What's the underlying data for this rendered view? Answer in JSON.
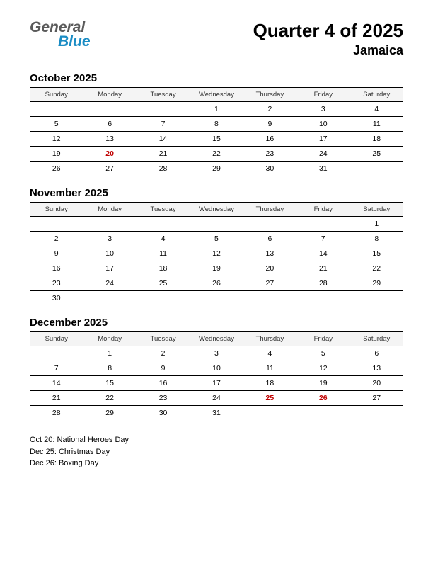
{
  "logo": {
    "line1": "General",
    "line2": "Blue",
    "color_top": "#5a5a5a",
    "color_bottom": "#1a8cc4"
  },
  "title": "Quarter 4 of 2025",
  "subtitle": "Jamaica",
  "weekday_labels": [
    "Sunday",
    "Monday",
    "Tuesday",
    "Wednesday",
    "Thursday",
    "Friday",
    "Saturday"
  ],
  "months": [
    {
      "name": "October 2025",
      "rows": [
        [
          "",
          "",
          "",
          "1",
          "2",
          "3",
          "4"
        ],
        [
          "5",
          "6",
          "7",
          "8",
          "9",
          "10",
          "11"
        ],
        [
          "12",
          "13",
          "14",
          "15",
          "16",
          "17",
          "18"
        ],
        [
          "19",
          "20",
          "21",
          "22",
          "23",
          "24",
          "25"
        ],
        [
          "26",
          "27",
          "28",
          "29",
          "30",
          "31",
          ""
        ]
      ],
      "holidays_cells": [
        [
          3,
          1
        ]
      ]
    },
    {
      "name": "November 2025",
      "rows": [
        [
          "",
          "",
          "",
          "",
          "",
          "",
          "1"
        ],
        [
          "2",
          "3",
          "4",
          "5",
          "6",
          "7",
          "8"
        ],
        [
          "9",
          "10",
          "11",
          "12",
          "13",
          "14",
          "15"
        ],
        [
          "16",
          "17",
          "18",
          "19",
          "20",
          "21",
          "22"
        ],
        [
          "23",
          "24",
          "25",
          "26",
          "27",
          "28",
          "29"
        ],
        [
          "30",
          "",
          "",
          "",
          "",
          "",
          ""
        ]
      ],
      "holidays_cells": []
    },
    {
      "name": "December 2025",
      "rows": [
        [
          "",
          "1",
          "2",
          "3",
          "4",
          "5",
          "6"
        ],
        [
          "7",
          "8",
          "9",
          "10",
          "11",
          "12",
          "13"
        ],
        [
          "14",
          "15",
          "16",
          "17",
          "18",
          "19",
          "20"
        ],
        [
          "21",
          "22",
          "23",
          "24",
          "25",
          "26",
          "27"
        ],
        [
          "28",
          "29",
          "30",
          "31",
          "",
          "",
          ""
        ]
      ],
      "holidays_cells": [
        [
          3,
          4
        ],
        [
          3,
          5
        ]
      ]
    }
  ],
  "holiday_notes": [
    "Oct 20: National Heroes Day",
    "Dec 25: Christmas Day",
    "Dec 26: Boxing Day"
  ],
  "colors": {
    "holiday_text": "#c00000",
    "header_bg": "#f4f4f4",
    "border": "#000000",
    "background": "#ffffff"
  }
}
